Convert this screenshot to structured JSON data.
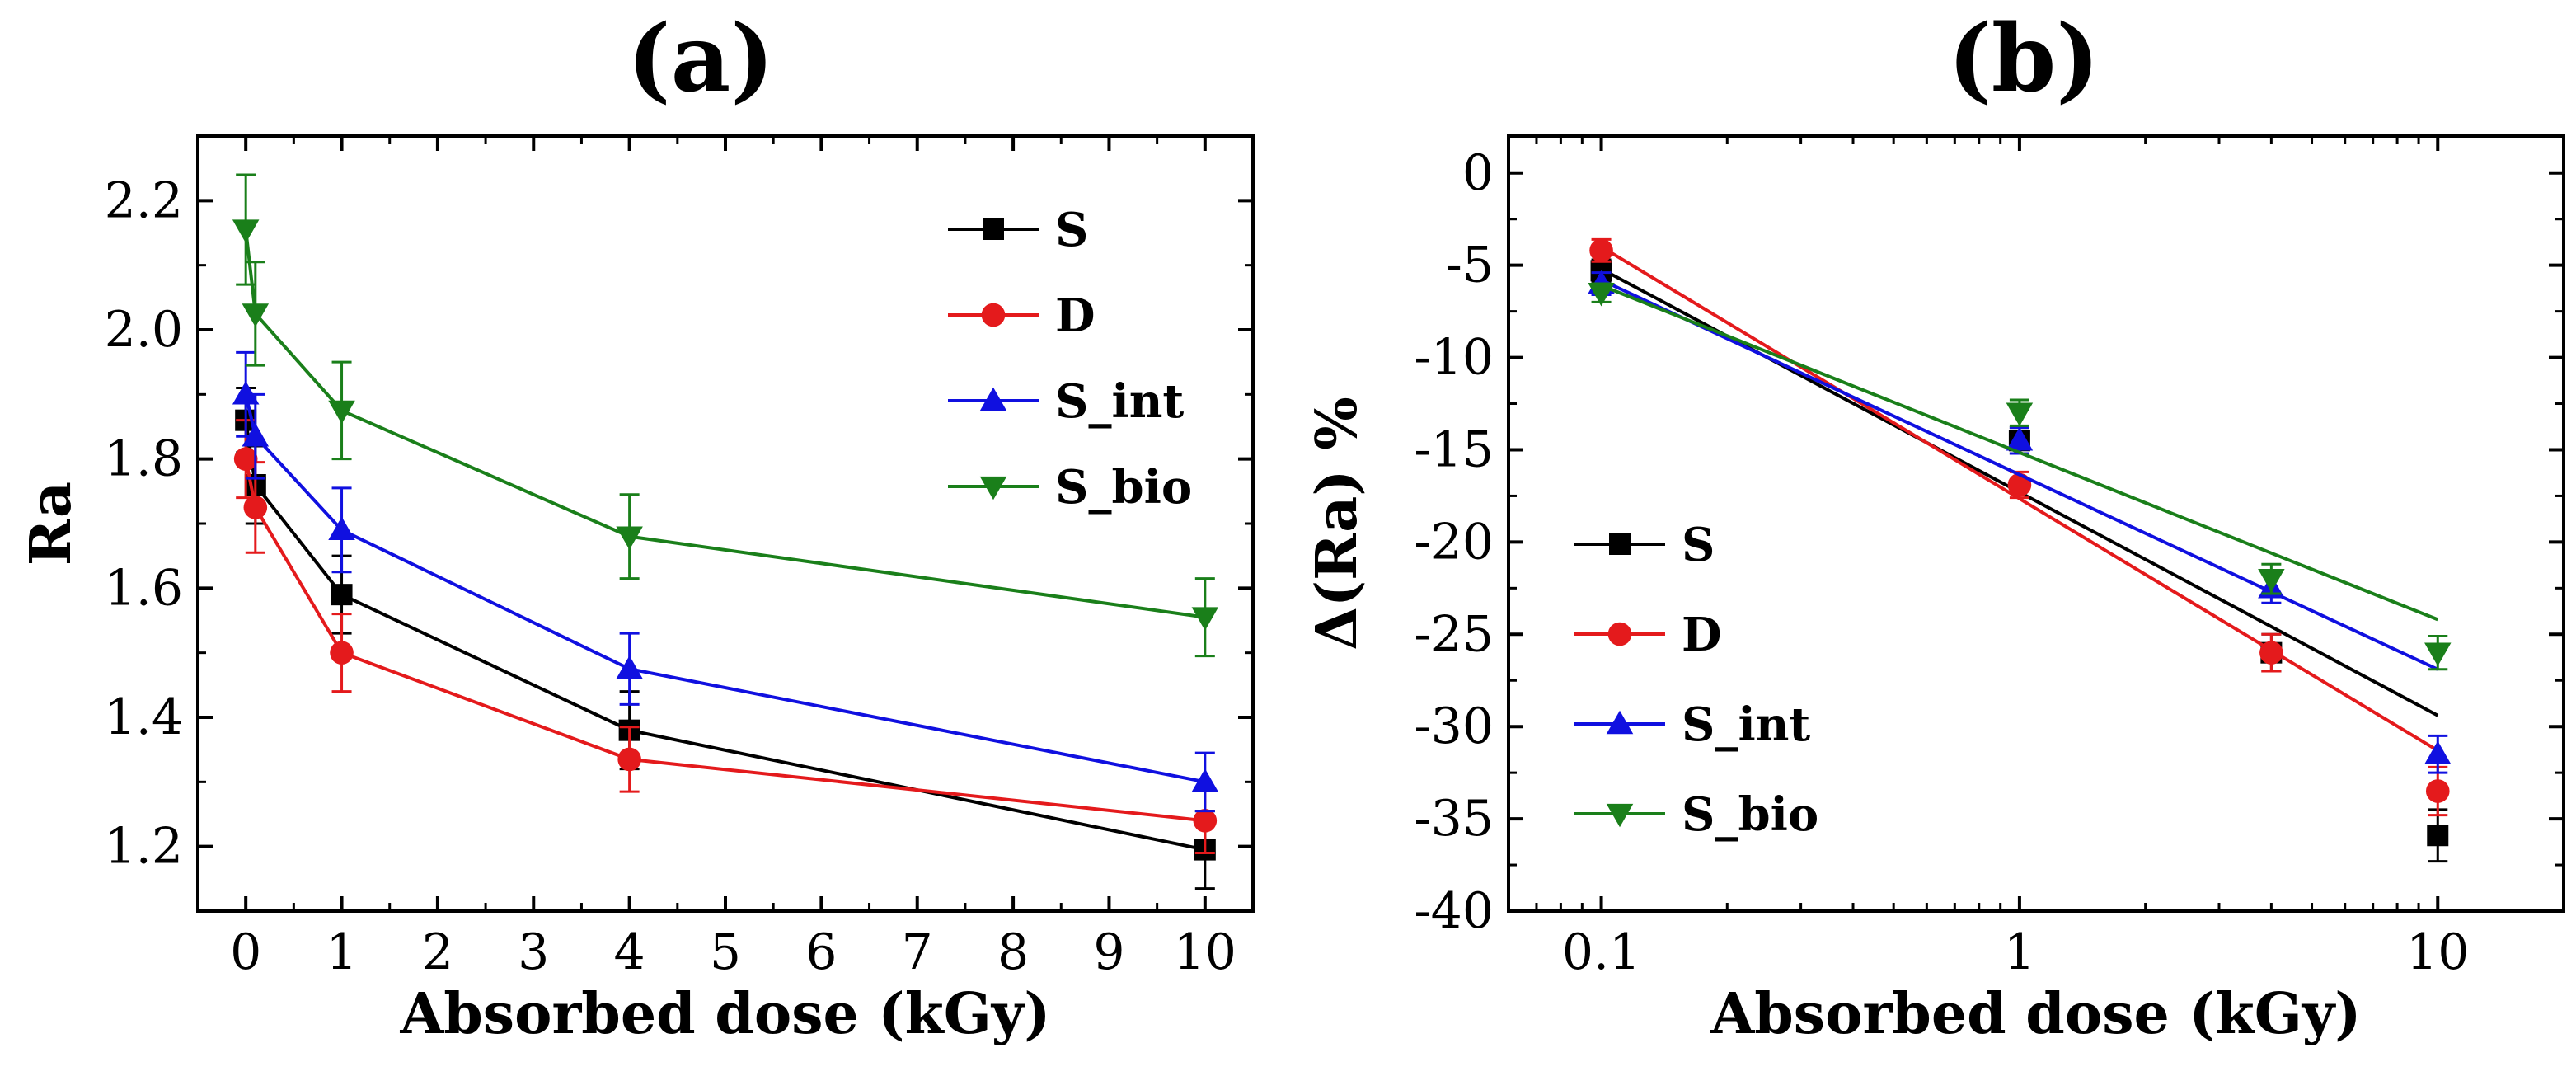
{
  "chart_data": [
    {
      "panel_label": "(a)",
      "type": "line",
      "xlabel": "Absorbed dose (kGy)",
      "ylabel": "Ra",
      "xlim": [
        -0.5,
        10.5
      ],
      "ylim": [
        1.1,
        2.3
      ],
      "xticks": [
        0,
        1,
        2,
        3,
        4,
        5,
        6,
        7,
        8,
        9,
        10
      ],
      "yticks": [
        1.2,
        1.4,
        1.6,
        1.8,
        2.0,
        2.2
      ],
      "ytick_labels": [
        "1.2",
        "1.4",
        "1.6",
        "1.8",
        "2.0",
        "2.2"
      ],
      "legend_position": "top-right",
      "error_bars": true,
      "series": [
        {
          "name": "S",
          "color": "#000000",
          "marker": "square",
          "x": [
            0,
            0.1,
            1,
            4,
            10
          ],
          "y": [
            1.86,
            1.76,
            1.59,
            1.38,
            1.195
          ],
          "err": [
            0.05,
            0.06,
            0.06,
            0.06,
            0.06
          ]
        },
        {
          "name": "D",
          "color": "#e41a1c",
          "marker": "circle",
          "x": [
            0,
            0.1,
            1,
            4,
            10
          ],
          "y": [
            1.8,
            1.725,
            1.5,
            1.335,
            1.24
          ],
          "err": [
            0.06,
            0.07,
            0.06,
            0.05,
            0.05
          ]
        },
        {
          "name": "S_int",
          "color": "#1010e0",
          "marker": "triangle-up",
          "x": [
            0,
            0.1,
            1,
            4,
            10
          ],
          "y": [
            1.9,
            1.835,
            1.69,
            1.475,
            1.3
          ],
          "err": [
            0.065,
            0.065,
            0.065,
            0.055,
            0.045
          ]
        },
        {
          "name": "S_bio",
          "color": "#1a7f1a",
          "marker": "triangle-down",
          "x": [
            0,
            0.1,
            1,
            4,
            10
          ],
          "y": [
            2.155,
            2.025,
            1.875,
            1.68,
            1.555
          ],
          "err": [
            0.085,
            0.08,
            0.075,
            0.065,
            0.06
          ]
        }
      ]
    },
    {
      "panel_label": "(b)",
      "type": "scatter",
      "xlabel": "Absorbed dose (kGy)",
      "ylabel": "Δ(Ra) %",
      "xscale": "log",
      "xlim": [
        0.06,
        20
      ],
      "ylim": [
        -40,
        2
      ],
      "xticks": [
        0.1,
        1,
        10
      ],
      "xtick_labels": [
        "0.1",
        "1",
        "10"
      ],
      "yticks": [
        0,
        -5,
        -10,
        -15,
        -20,
        -25,
        -30,
        -35,
        -40
      ],
      "legend_position": "bottom-left",
      "error_bars": true,
      "fit_lines": "linear fit vs log10(dose) per series",
      "series": [
        {
          "name": "S",
          "color": "#000000",
          "marker": "square",
          "x": [
            0.1,
            1,
            4,
            10
          ],
          "y": [
            -5.3,
            -14.5,
            -26.0,
            -35.9
          ],
          "err": [
            0.6,
            0.7,
            1.0,
            1.4
          ],
          "fit": {
            "x": [
              0.1,
              10
            ],
            "y": [
              -5.2,
              -29.4
            ]
          }
        },
        {
          "name": "D",
          "color": "#e41a1c",
          "marker": "circle",
          "x": [
            0.1,
            1,
            4,
            10
          ],
          "y": [
            -4.2,
            -16.9,
            -26.0,
            -33.5
          ],
          "err": [
            0.6,
            0.7,
            1.0,
            1.3
          ],
          "fit": {
            "x": [
              0.1,
              10
            ],
            "y": [
              -4.0,
              -31.3
            ]
          }
        },
        {
          "name": "S_int",
          "color": "#1010e0",
          "marker": "triangle-up",
          "x": [
            0.1,
            1,
            4,
            10
          ],
          "y": [
            -6.0,
            -14.5,
            -22.5,
            -31.5
          ],
          "err": [
            0.6,
            0.7,
            0.8,
            1.0
          ],
          "fit": {
            "x": [
              0.1,
              10
            ],
            "y": [
              -5.8,
              -26.9
            ]
          }
        },
        {
          "name": "S_bio",
          "color": "#1a7f1a",
          "marker": "triangle-down",
          "x": [
            0.1,
            1,
            4,
            10
          ],
          "y": [
            -6.5,
            -13.0,
            -22.0,
            -26.0
          ],
          "err": [
            0.5,
            0.7,
            0.8,
            0.9
          ],
          "fit": {
            "x": [
              0.1,
              10
            ],
            "y": [
              -6.1,
              -24.2
            ]
          }
        }
      ]
    }
  ]
}
